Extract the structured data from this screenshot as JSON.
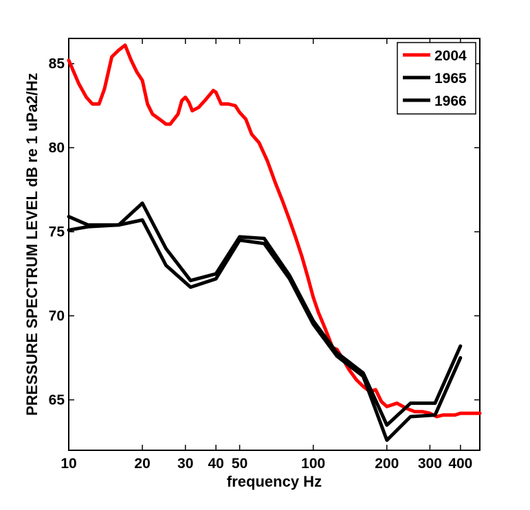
{
  "chart_data": {
    "type": "line",
    "title": "",
    "xlabel": "frequency Hz",
    "ylabel": "PRESSURE SPECTRUM LEVEL dB re 1 uPa2/Hz",
    "x_scale": "log",
    "xlim": [
      10,
      480
    ],
    "ylim": [
      62,
      86.5
    ],
    "xticks": [
      10,
      20,
      30,
      40,
      50,
      100,
      200,
      300,
      400
    ],
    "xtick_labels": [
      "10",
      "20",
      "30",
      "40",
      "50",
      "100",
      "200",
      "300",
      "400"
    ],
    "yticks": [
      65,
      70,
      75,
      80,
      85
    ],
    "ytick_labels": [
      "65",
      "70",
      "75",
      "80",
      "85"
    ],
    "grid": false,
    "legend_position": "top-right",
    "series": [
      {
        "name": "2004",
        "color": "#ff0000",
        "x": [
          10,
          11,
          11.8,
          12.5,
          13.3,
          14,
          15,
          16,
          17,
          18,
          19,
          20,
          21,
          22,
          24,
          25,
          26,
          28,
          29,
          30,
          31,
          32,
          34,
          36,
          38,
          39,
          40,
          42,
          45,
          48,
          50,
          53,
          56,
          60,
          65,
          70,
          75,
          80,
          85,
          90,
          95,
          100,
          105,
          110,
          115,
          120,
          125,
          130,
          140,
          150,
          160,
          170,
          180,
          190,
          200,
          210,
          220,
          240,
          260,
          280,
          300,
          320,
          340,
          360,
          380,
          400,
          430,
          460,
          480
        ],
        "y": [
          85.2,
          83.8,
          83.0,
          82.6,
          82.6,
          83.5,
          85.4,
          85.8,
          86.1,
          85.2,
          84.5,
          84.0,
          82.6,
          82.0,
          81.6,
          81.4,
          81.4,
          82.0,
          82.8,
          83.0,
          82.7,
          82.2,
          82.4,
          82.8,
          83.2,
          83.4,
          83.3,
          82.6,
          82.6,
          82.5,
          82.1,
          81.7,
          80.8,
          80.3,
          79.2,
          77.9,
          76.8,
          75.7,
          74.6,
          73.5,
          72.3,
          71.1,
          70.2,
          69.5,
          68.8,
          68.1,
          68.0,
          67.6,
          66.8,
          66.2,
          65.8,
          65.5,
          65.6,
          64.9,
          64.6,
          64.7,
          64.8,
          64.5,
          64.3,
          64.3,
          64.2,
          64.0,
          64.1,
          64.1,
          64.1,
          64.2,
          64.2,
          64.2,
          64.2
        ]
      },
      {
        "name": "1965",
        "color": "#000000",
        "x": [
          10,
          12,
          16,
          20,
          25,
          31.5,
          40,
          50,
          63,
          80,
          100,
          125,
          160,
          200,
          250,
          315,
          400
        ],
        "y": [
          75.9,
          75.4,
          75.4,
          76.7,
          74.0,
          72.1,
          72.5,
          74.7,
          74.6,
          72.4,
          69.7,
          67.8,
          66.6,
          63.5,
          64.8,
          64.8,
          68.2
        ]
      },
      {
        "name": "1966",
        "color": "#000000",
        "x": [
          10,
          12,
          16,
          20,
          25,
          31.5,
          40,
          50,
          63,
          80,
          100,
          125,
          160,
          200,
          250,
          315,
          400
        ],
        "y": [
          75.1,
          75.3,
          75.4,
          75.7,
          73.0,
          71.7,
          72.2,
          74.5,
          74.3,
          72.2,
          69.5,
          67.6,
          66.4,
          62.6,
          64.0,
          64.1,
          67.5
        ]
      }
    ]
  }
}
